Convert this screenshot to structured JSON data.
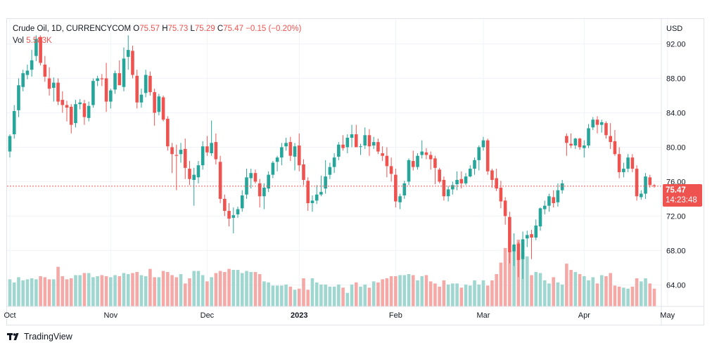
{
  "legend": {
    "symbol": "Crude Oil, 1D, CURRENCYCOM",
    "o_label": "O",
    "o_val": "75.57",
    "h_label": "H",
    "h_val": "75.73",
    "l_label": "L",
    "l_val": "75.29",
    "c_label": "C",
    "c_val": "75.47",
    "change": "−0.15 (−0.20%)",
    "vol_label": "Vol",
    "vol_val": "5.583K"
  },
  "price_badge": {
    "price": "75.47",
    "countdown": "14:23:48"
  },
  "branding": {
    "name": "TradingView"
  },
  "colors": {
    "up": "#26a69a",
    "down": "#ef5350",
    "vol_up": "#9fd6cf",
    "vol_down": "#f4a9a7",
    "grid": "#f0f3fa",
    "current_line": "#ef5350"
  },
  "chart_data": {
    "type": "candlestick",
    "currency_label": "USD",
    "y_ticks": [
      "92.00",
      "88.00",
      "84.00",
      "80.00",
      "76.00",
      "72.00",
      "68.00",
      "64.00"
    ],
    "ylim": [
      61.5,
      94.9
    ],
    "current_price": 75.47,
    "x_ticks": [
      {
        "label": "Oct",
        "index": 0
      },
      {
        "label": "Nov",
        "index": 23
      },
      {
        "label": "Dec",
        "index": 45
      },
      {
        "label": "2023",
        "index": 66
      },
      {
        "label": "Feb",
        "index": 88
      },
      {
        "label": "Mar",
        "index": 108
      },
      {
        "label": "Apr",
        "index": 131
      },
      {
        "label": "May",
        "index": 150
      }
    ],
    "candles": [
      [
        79.5,
        81.5,
        78.8,
        81.3,
        2.6
      ],
      [
        81.5,
        84.9,
        81.0,
        84.2,
        2.3
      ],
      [
        84.3,
        88.0,
        83.5,
        87.2,
        2.8
      ],
      [
        87.0,
        89.0,
        86.5,
        88.6,
        2.5
      ],
      [
        88.4,
        89.6,
        87.9,
        88.9,
        2.6
      ],
      [
        89.0,
        91.3,
        88.2,
        90.1,
        2.7
      ],
      [
        90.6,
        93.0,
        90.0,
        92.6,
        2.6
      ],
      [
        92.8,
        93.0,
        89.5,
        89.8,
        2.9
      ],
      [
        89.6,
        90.6,
        87.6,
        88.2,
        2.8
      ],
      [
        88.0,
        89.3,
        86.0,
        86.8,
        2.6
      ],
      [
        86.9,
        88.1,
        85.3,
        87.5,
        2.6
      ],
      [
        87.5,
        88.0,
        84.9,
        85.3,
        3.8
      ],
      [
        85.5,
        86.5,
        84.0,
        84.9,
        2.9
      ],
      [
        84.9,
        85.4,
        83.0,
        84.6,
        2.6
      ],
      [
        84.7,
        85.0,
        81.6,
        82.6,
        2.7
      ],
      [
        82.8,
        85.5,
        82.3,
        85.0,
        3.0
      ],
      [
        85.0,
        85.6,
        84.4,
        85.2,
        3.0
      ],
      [
        85.1,
        85.5,
        82.6,
        83.5,
        3.2
      ],
      [
        83.4,
        85.3,
        83.0,
        84.8,
        3.2
      ],
      [
        84.9,
        88.0,
        84.6,
        87.7,
        2.8
      ],
      [
        87.7,
        88.3,
        87.1,
        88.0,
        2.9
      ],
      [
        88.0,
        88.5,
        87.1,
        87.9,
        3.0
      ],
      [
        88.0,
        89.8,
        84.1,
        85.3,
        2.9
      ],
      [
        85.3,
        86.8,
        84.5,
        86.6,
        2.8
      ],
      [
        86.7,
        88.9,
        86.2,
        88.6,
        3.0
      ],
      [
        88.6,
        90.1,
        87.3,
        87.2,
        2.9
      ],
      [
        87.0,
        91.6,
        86.5,
        90.3,
        3.2
      ],
      [
        90.5,
        93.0,
        89.0,
        91.3,
        3.1
      ],
      [
        91.2,
        91.8,
        88.0,
        88.4,
        3.2
      ],
      [
        88.3,
        89.0,
        84.5,
        85.2,
        3.3
      ],
      [
        85.2,
        86.8,
        84.6,
        86.1,
        3.0
      ],
      [
        86.3,
        89.0,
        85.8,
        88.4,
        2.9
      ],
      [
        88.3,
        88.8,
        86.0,
        86.4,
        3.6
      ],
      [
        86.4,
        86.8,
        82.5,
        84.0,
        2.8
      ],
      [
        84.1,
        86.2,
        83.7,
        85.9,
        2.8
      ],
      [
        85.8,
        86.0,
        83.0,
        83.2,
        3.4
      ],
      [
        83.3,
        83.6,
        79.6,
        80.1,
        3.3
      ],
      [
        80.0,
        80.5,
        77.0,
        79.2,
        3.0
      ],
      [
        79.1,
        80.3,
        75.0,
        79.0,
        2.8
      ],
      [
        79.2,
        80.5,
        78.2,
        79.7,
        3.1
      ],
      [
        79.8,
        81.0,
        76.3,
        77.6,
        2.2
      ],
      [
        77.5,
        78.4,
        75.6,
        76.3,
        2.7
      ],
      [
        76.2,
        77.6,
        73.2,
        76.8,
        3.4
      ],
      [
        76.5,
        78.4,
        75.8,
        77.9,
        3.4
      ],
      [
        77.9,
        80.7,
        77.4,
        80.1,
        3.0
      ],
      [
        80.1,
        81.3,
        79.0,
        79.4,
        2.4
      ],
      [
        79.3,
        83.1,
        79.0,
        80.5,
        2.8
      ],
      [
        80.6,
        81.6,
        78.0,
        78.6,
        3.2
      ],
      [
        78.3,
        79.0,
        73.5,
        74.0,
        3.4
      ],
      [
        74.0,
        74.5,
        72.0,
        72.6,
        3.3
      ],
      [
        72.6,
        73.5,
        70.8,
        71.7,
        3.6
      ],
      [
        71.8,
        73.0,
        70.0,
        72.1,
        3.5
      ],
      [
        72.2,
        73.1,
        71.8,
        72.8,
        3.5
      ],
      [
        72.9,
        75.0,
        72.5,
        74.4,
        3.2
      ],
      [
        74.5,
        77.5,
        74.0,
        76.5,
        3.4
      ],
      [
        76.4,
        77.5,
        75.2,
        77.0,
        3.3
      ],
      [
        77.0,
        77.4,
        75.8,
        76.0,
        3.3
      ],
      [
        75.8,
        76.3,
        73.0,
        74.3,
        3.1
      ],
      [
        74.3,
        75.8,
        72.8,
        75.3,
        2.4
      ],
      [
        75.2,
        77.2,
        74.8,
        76.8,
        2.3
      ],
      [
        76.8,
        78.4,
        76.4,
        78.2,
        2.0
      ],
      [
        78.3,
        79.0,
        77.2,
        78.8,
        2.0
      ],
      [
        78.8,
        80.5,
        77.9,
        80.0,
        2.0
      ],
      [
        80.1,
        81.1,
        79.6,
        80.5,
        2.1
      ],
      [
        80.6,
        81.2,
        78.4,
        79.0,
        1.9
      ],
      [
        78.9,
        80.5,
        77.3,
        80.1,
        1.6
      ],
      [
        80.2,
        81.6,
        77.2,
        77.9,
        1.7
      ],
      [
        78.0,
        78.6,
        75.6,
        76.2,
        2.7
      ],
      [
        76.1,
        76.5,
        72.6,
        73.5,
        1.6
      ],
      [
        73.5,
        74.4,
        72.5,
        73.8,
        2.7
      ],
      [
        73.8,
        75.6,
        73.4,
        74.5,
        2.3
      ],
      [
        74.5,
        76.7,
        74.3,
        74.8,
        2.1
      ],
      [
        75.2,
        78.5,
        74.6,
        76.6,
        2.1
      ],
      [
        76.8,
        78.2,
        76.3,
        77.7,
        1.9
      ],
      [
        77.7,
        79.3,
        77.0,
        78.8,
        1.9
      ],
      [
        78.9,
        80.6,
        78.5,
        80.3,
        2.1
      ],
      [
        80.3,
        81.4,
        79.6,
        79.9,
        1.8
      ],
      [
        80.0,
        81.5,
        79.3,
        81.1,
        1.3
      ],
      [
        81.1,
        82.6,
        80.0,
        81.5,
        2.1
      ],
      [
        81.5,
        82.6,
        80.0,
        80.0,
        2.3
      ],
      [
        80.1,
        80.4,
        79.1,
        80.1,
        1.9
      ],
      [
        80.2,
        82.3,
        79.8,
        81.4,
        2.1
      ],
      [
        81.4,
        82.1,
        79.0,
        80.1,
        1.8
      ],
      [
        80.2,
        81.2,
        79.8,
        80.6,
        2.4
      ],
      [
        80.6,
        81.0,
        79.2,
        79.5,
        2.3
      ],
      [
        79.3,
        80.1,
        78.4,
        79.0,
        2.6
      ],
      [
        79.0,
        80.0,
        76.5,
        77.8,
        2.7
      ],
      [
        77.8,
        78.8,
        76.0,
        76.9,
        2.9
      ],
      [
        76.8,
        77.5,
        73.0,
        73.7,
        2.9
      ],
      [
        73.6,
        74.6,
        72.8,
        74.3,
        3.0
      ],
      [
        74.4,
        76.1,
        74.0,
        75.8,
        3.0
      ],
      [
        76.0,
        78.7,
        75.6,
        78.5,
        3.1
      ],
      [
        78.4,
        79.6,
        77.3,
        77.7,
        3.0
      ],
      [
        77.7,
        79.3,
        77.4,
        79.0,
        2.5
      ],
      [
        79.1,
        80.8,
        78.7,
        79.5,
        2.9
      ],
      [
        79.4,
        79.9,
        78.6,
        79.1,
        3.0
      ],
      [
        79.1,
        79.5,
        77.4,
        78.6,
        2.4
      ],
      [
        78.7,
        79.0,
        75.7,
        77.6,
        2.2
      ],
      [
        77.4,
        77.6,
        75.8,
        76.0,
        1.9
      ],
      [
        76.2,
        76.6,
        73.8,
        74.3,
        2.5
      ],
      [
        74.3,
        75.5,
        73.7,
        75.1,
        2.1
      ],
      [
        75.1,
        76.0,
        74.5,
        75.6,
        2.2
      ],
      [
        75.7,
        77.2,
        75.0,
        76.2,
        2.2
      ],
      [
        76.3,
        77.2,
        75.2,
        75.8,
        1.8
      ],
      [
        75.8,
        77.0,
        75.6,
        76.6,
        2.1
      ],
      [
        76.6,
        77.9,
        76.5,
        77.5,
        2.0
      ],
      [
        77.5,
        78.8,
        76.8,
        78.5,
        2.5
      ],
      [
        78.5,
        80.2,
        77.3,
        80.0,
        2.1
      ],
      [
        80.0,
        81.2,
        79.6,
        80.8,
        2.5
      ],
      [
        80.8,
        81.0,
        76.8,
        77.2,
        2.0
      ],
      [
        77.3,
        77.5,
        75.3,
        76.2,
        2.5
      ],
      [
        76.4,
        77.5,
        74.9,
        75.2,
        3.1
      ],
      [
        75.3,
        76.1,
        72.9,
        73.7,
        4.2
      ],
      [
        73.8,
        74.2,
        71.0,
        72.0,
        5.6
      ],
      [
        71.9,
        72.5,
        66.5,
        67.8,
        5.4
      ],
      [
        67.9,
        70.0,
        66.2,
        68.7,
        5.8
      ],
      [
        68.8,
        69.0,
        64.9,
        66.9,
        6.4
      ],
      [
        67.0,
        70.2,
        64.7,
        69.3,
        5.1
      ],
      [
        69.4,
        70.3,
        68.4,
        69.8,
        4.8
      ],
      [
        69.9,
        70.4,
        67.0,
        69.5,
        3.0
      ],
      [
        69.5,
        71.6,
        69.2,
        70.9,
        3.3
      ],
      [
        70.8,
        73.0,
        70.3,
        72.9,
        3.2
      ],
      [
        72.8,
        73.8,
        72.2,
        73.2,
        2.5
      ],
      [
        73.2,
        74.6,
        72.5,
        74.3,
        2.2
      ],
      [
        74.2,
        75.0,
        73.0,
        73.5,
        2.8
      ],
      [
        73.6,
        75.8,
        73.1,
        75.0,
        2.3
      ],
      [
        75.0,
        76.2,
        74.6,
        75.8,
        2.1
      ],
      [
        81.3,
        81.6,
        79.0,
        80.5,
        4.1
      ],
      [
        80.4,
        81.6,
        79.9,
        80.2,
        3.5
      ],
      [
        80.2,
        81.1,
        79.8,
        81.0,
        3.3
      ],
      [
        81.0,
        81.1,
        79.7,
        80.0,
        3.1
      ],
      [
        79.9,
        80.8,
        78.8,
        80.2,
        2.9
      ],
      [
        80.2,
        82.7,
        79.9,
        82.2,
        2.5
      ],
      [
        82.3,
        83.5,
        82.0,
        83.2,
        2.8
      ],
      [
        83.2,
        83.6,
        81.6,
        82.6,
        2.2
      ],
      [
        82.6,
        83.2,
        81.7,
        82.9,
        3.0
      ],
      [
        82.8,
        83.0,
        81.0,
        81.4,
        2.9
      ],
      [
        81.3,
        82.8,
        79.8,
        80.6,
        3.2
      ],
      [
        80.7,
        82.0,
        79.0,
        79.2,
        2.0
      ],
      [
        79.2,
        80.0,
        76.4,
        77.1,
        1.9
      ],
      [
        77.1,
        78.2,
        76.5,
        77.5,
        1.8
      ],
      [
        77.5,
        79.2,
        77.1,
        78.8,
        1.7
      ],
      [
        78.8,
        79.2,
        77.1,
        77.5,
        1.9
      ],
      [
        77.5,
        77.9,
        73.8,
        74.3,
        2.7
      ],
      [
        74.2,
        75.0,
        73.9,
        74.6,
        2.4
      ],
      [
        74.6,
        77.0,
        74.0,
        76.6,
        2.7
      ],
      [
        76.5,
        76.8,
        75.3,
        75.6,
        2.2
      ],
      [
        75.57,
        75.73,
        75.29,
        75.47,
        1.7
      ]
    ]
  }
}
